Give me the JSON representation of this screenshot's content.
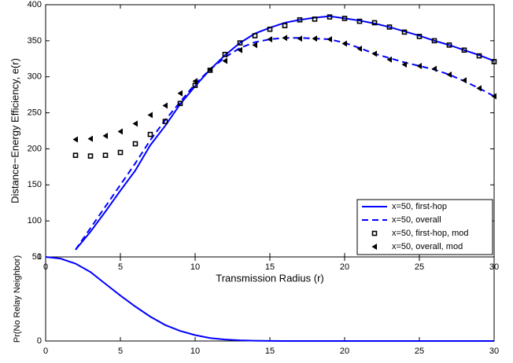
{
  "chart_data": [
    {
      "type": "line",
      "xlabel": "Transmission Radius (r)",
      "ylabel": "Distance−Energy Efficiency, e(r)",
      "x": [
        2,
        3,
        4,
        5,
        6,
        7,
        8,
        9,
        10,
        11,
        12,
        13,
        14,
        15,
        16,
        17,
        18,
        19,
        20,
        21,
        22,
        23,
        24,
        25,
        26,
        27,
        28,
        29,
        30
      ],
      "xlim": [
        0,
        30
      ],
      "xticks": [
        0,
        5,
        10,
        15,
        20,
        25,
        30
      ],
      "ylim": [
        50,
        400
      ],
      "yticks": [
        50,
        100,
        150,
        200,
        250,
        300,
        350,
        400
      ],
      "legend": "lower right",
      "series": [
        {
          "name": "x=50, first-hop",
          "color": "#0000ff",
          "line_style": "solid",
          "marker": "none",
          "values": [
            60,
            85,
            113,
            142,
            170,
            205,
            232,
            262,
            287,
            310,
            330,
            347,
            360,
            368,
            375,
            379,
            382,
            384,
            381,
            378,
            374,
            369,
            363,
            357,
            350,
            344,
            337,
            330,
            322
          ]
        },
        {
          "name": "x=50, overall",
          "color": "#0000ff",
          "line_style": "dashed",
          "marker": "none",
          "values": [
            60,
            90,
            120,
            150,
            180,
            212,
            240,
            265,
            290,
            310,
            327,
            340,
            348,
            352,
            354,
            354,
            353,
            352,
            347,
            340,
            332,
            326,
            320,
            315,
            310,
            303,
            294,
            284,
            273
          ]
        },
        {
          "name": "x=50, first-hop, mod",
          "color": "#000000",
          "line_style": "none",
          "marker": "square",
          "values": [
            191,
            190,
            191,
            195,
            207,
            220,
            238,
            263,
            288,
            309,
            331,
            347,
            357,
            366,
            371,
            379,
            380,
            383,
            381,
            377,
            375,
            369,
            362,
            356,
            350,
            344,
            337,
            329,
            321
          ]
        },
        {
          "name": "x=50, overall, mod",
          "color": "#000000",
          "line_style": "none",
          "marker": "triangle",
          "values": [
            213,
            214,
            218,
            224,
            235,
            247,
            260,
            277,
            294,
            310,
            322,
            337,
            344,
            352,
            354,
            353,
            353,
            352,
            346,
            339,
            332,
            324,
            317,
            315,
            311,
            303,
            295,
            284,
            273
          ]
        }
      ]
    },
    {
      "type": "line",
      "ylabel": "Pr(No Relay Neighbor)",
      "x": [
        0,
        1,
        2,
        3,
        4,
        5,
        6,
        7,
        8,
        9,
        10,
        11,
        12,
        13,
        14,
        15,
        16,
        17,
        18,
        19,
        20,
        21,
        22,
        23,
        24,
        25,
        26,
        27,
        28,
        29,
        30
      ],
      "xlim": [
        0,
        30
      ],
      "xticks": [
        0,
        5,
        10,
        15,
        20,
        25,
        30
      ],
      "ylim": [
        0,
        1
      ],
      "yticks": [
        0,
        1
      ],
      "series": [
        {
          "color": "#0000ff",
          "line_style": "solid",
          "marker": "none",
          "values": [
            1,
            0.98,
            0.92,
            0.82,
            0.68,
            0.54,
            0.41,
            0.29,
            0.19,
            0.12,
            0.07,
            0.035,
            0.017,
            0.008,
            0.003,
            0.001,
            0,
            0,
            0,
            0,
            0,
            0,
            0,
            0,
            0,
            0,
            0,
            0,
            0,
            0,
            0
          ]
        }
      ]
    }
  ]
}
